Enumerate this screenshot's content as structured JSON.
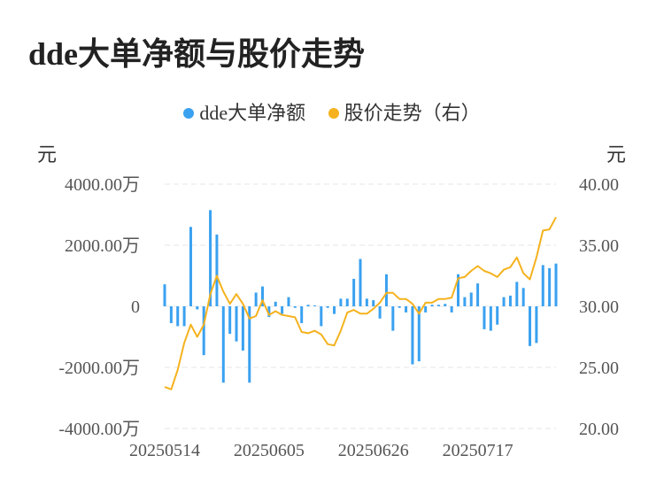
{
  "title": "dde大单净额与股价走势",
  "legend": {
    "series1": "dde大单净额",
    "series2": "股价走势（右）"
  },
  "axis": {
    "left_unit": "元",
    "right_unit": "元"
  },
  "colors": {
    "bar": "#3aa1f0",
    "line": "#f5b21e",
    "grid": "#e6e6e6"
  },
  "chart_data": {
    "type": "bar+line",
    "title": "dde大单净额与股价走势",
    "xlabel": "",
    "ylabel_left": "元",
    "ylabel_right": "元",
    "x_tick_labels": [
      "20250514",
      "20250605",
      "20250626",
      "20250717"
    ],
    "x_tick_indices": [
      0,
      16,
      32,
      48
    ],
    "y_left_ticks": [
      "4000.00万",
      "2000.00万",
      "0",
      "-2000.00万",
      "-4000.00万"
    ],
    "y_left_range": [
      -4000,
      4000
    ],
    "y_right_ticks": [
      "40.00",
      "35.00",
      "30.00",
      "25.00",
      "20.00"
    ],
    "y_right_range": [
      20,
      40
    ],
    "grid": true,
    "legend_position": "top-center",
    "series": [
      {
        "name": "dde大单净额",
        "type": "bar",
        "axis": "left",
        "unit": "万元",
        "values": [
          720,
          -550,
          -650,
          -650,
          2600,
          -100,
          -1600,
          3150,
          2350,
          -2500,
          -900,
          -1150,
          -1450,
          -2500,
          450,
          650,
          -350,
          150,
          -250,
          300,
          -50,
          -550,
          50,
          30,
          -650,
          -50,
          -250,
          250,
          250,
          900,
          1550,
          250,
          200,
          -400,
          1050,
          -800,
          -50,
          -200,
          -1900,
          -1800,
          -200,
          50,
          50,
          80,
          -200,
          1050,
          300,
          450,
          750,
          -750,
          -800,
          -600,
          300,
          350,
          800,
          600,
          -1300,
          -1200,
          1350,
          1250,
          1400
        ]
      },
      {
        "name": "股价走势（右）",
        "type": "line",
        "axis": "right",
        "unit": "元",
        "values": [
          23.4,
          23.2,
          24.8,
          27.0,
          28.5,
          27.5,
          28.5,
          31.0,
          32.5,
          31.2,
          30.2,
          31.0,
          30.2,
          29.0,
          29.2,
          30.5,
          29.3,
          29.6,
          29.3,
          29.2,
          29.1,
          27.9,
          27.8,
          28.0,
          27.7,
          26.9,
          26.8,
          28.0,
          29.5,
          29.7,
          29.4,
          29.4,
          29.8,
          30.3,
          31.1,
          31.1,
          30.6,
          30.6,
          30.2,
          29.4,
          30.3,
          30.3,
          30.6,
          30.6,
          30.7,
          32.3,
          32.4,
          32.9,
          33.3,
          32.9,
          32.7,
          32.4,
          33.0,
          33.2,
          34.0,
          32.7,
          32.2,
          34.0,
          36.2,
          36.3,
          37.3
        ]
      }
    ]
  }
}
